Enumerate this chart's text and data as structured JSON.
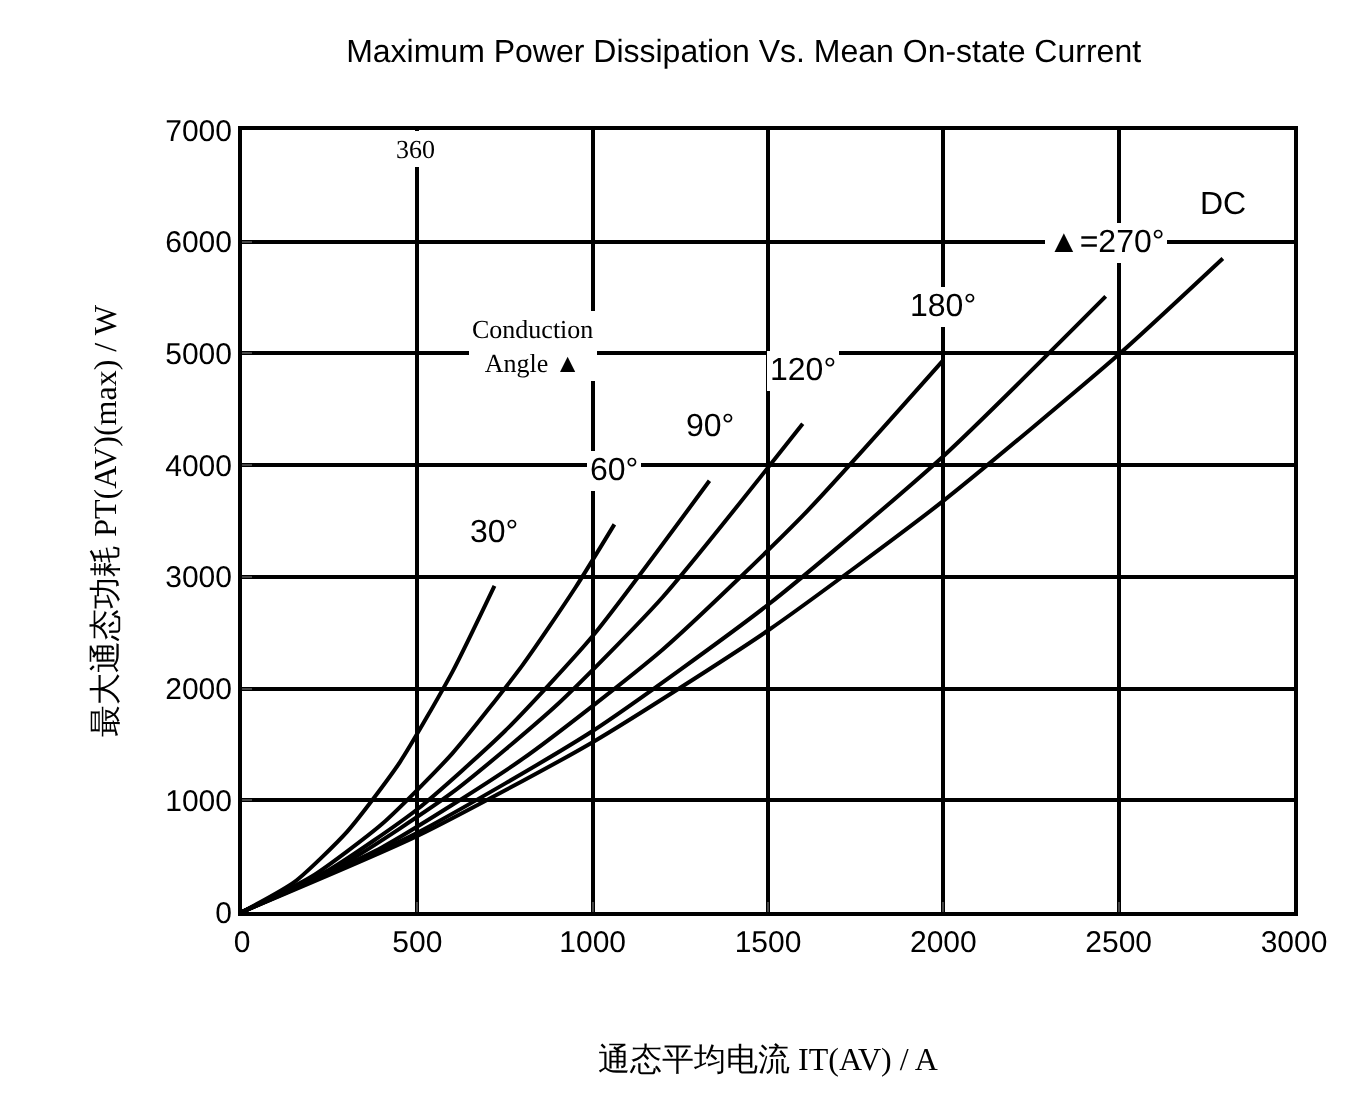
{
  "chart_data": {
    "type": "line",
    "title": "Maximum Power Dissipation Vs. Mean On-state Current",
    "xlabel": "通态平均电流 IT(AV) / A",
    "ylabel": "最大通态功耗 PT(AV)(max) / W",
    "xlim": [
      0,
      3000
    ],
    "xticks": [
      0,
      500,
      1000,
      1500,
      2000,
      2500,
      3000
    ],
    "ylim": [
      0,
      7000
    ],
    "yticks": [
      0,
      1000,
      2000,
      3000,
      4000,
      5000,
      6000,
      7000
    ],
    "grid": true,
    "legend": false,
    "marker": "none",
    "line_style": "solid",
    "annotations": [
      "360",
      "Conduction\nAngle ▲"
    ],
    "series": [
      {
        "name": "30°",
        "color": "#000000",
        "x": [
          0,
          150,
          300,
          450,
          600,
          720
        ],
        "values": [
          0,
          270,
          720,
          1340,
          2150,
          2920
        ]
      },
      {
        "name": "60°",
        "color": "#000000",
        "x": [
          0,
          200,
          400,
          600,
          800,
          950,
          1062
        ],
        "values": [
          0,
          320,
          790,
          1420,
          2210,
          2900,
          3470
        ]
      },
      {
        "name": "90°",
        "color": "#000000",
        "x": [
          0,
          250,
          500,
          750,
          1000,
          1333
        ],
        "values": [
          0,
          380,
          920,
          1620,
          2470,
          3860
        ]
      },
      {
        "name": "120°",
        "color": "#000000",
        "x": [
          0,
          300,
          600,
          900,
          1200,
          1599
        ],
        "values": [
          0,
          450,
          1070,
          1860,
          2820,
          4370
        ]
      },
      {
        "name": "180°",
        "color": "#000000",
        "x": [
          0,
          400,
          800,
          1200,
          1600,
          2000
        ],
        "values": [
          0,
          580,
          1370,
          2350,
          3550,
          4940
        ]
      },
      {
        "name": "▲=270°",
        "color": "#000000",
        "x": [
          0,
          500,
          1000,
          1500,
          2000,
          2463
        ],
        "values": [
          0,
          710,
          1620,
          2750,
          4080,
          5510
        ]
      },
      {
        "name": "DC",
        "color": "#000000",
        "x": [
          0,
          500,
          1000,
          1500,
          2000,
          2500,
          2797
        ],
        "values": [
          0,
          680,
          1520,
          2520,
          3680,
          4990,
          5850
        ]
      }
    ]
  }
}
